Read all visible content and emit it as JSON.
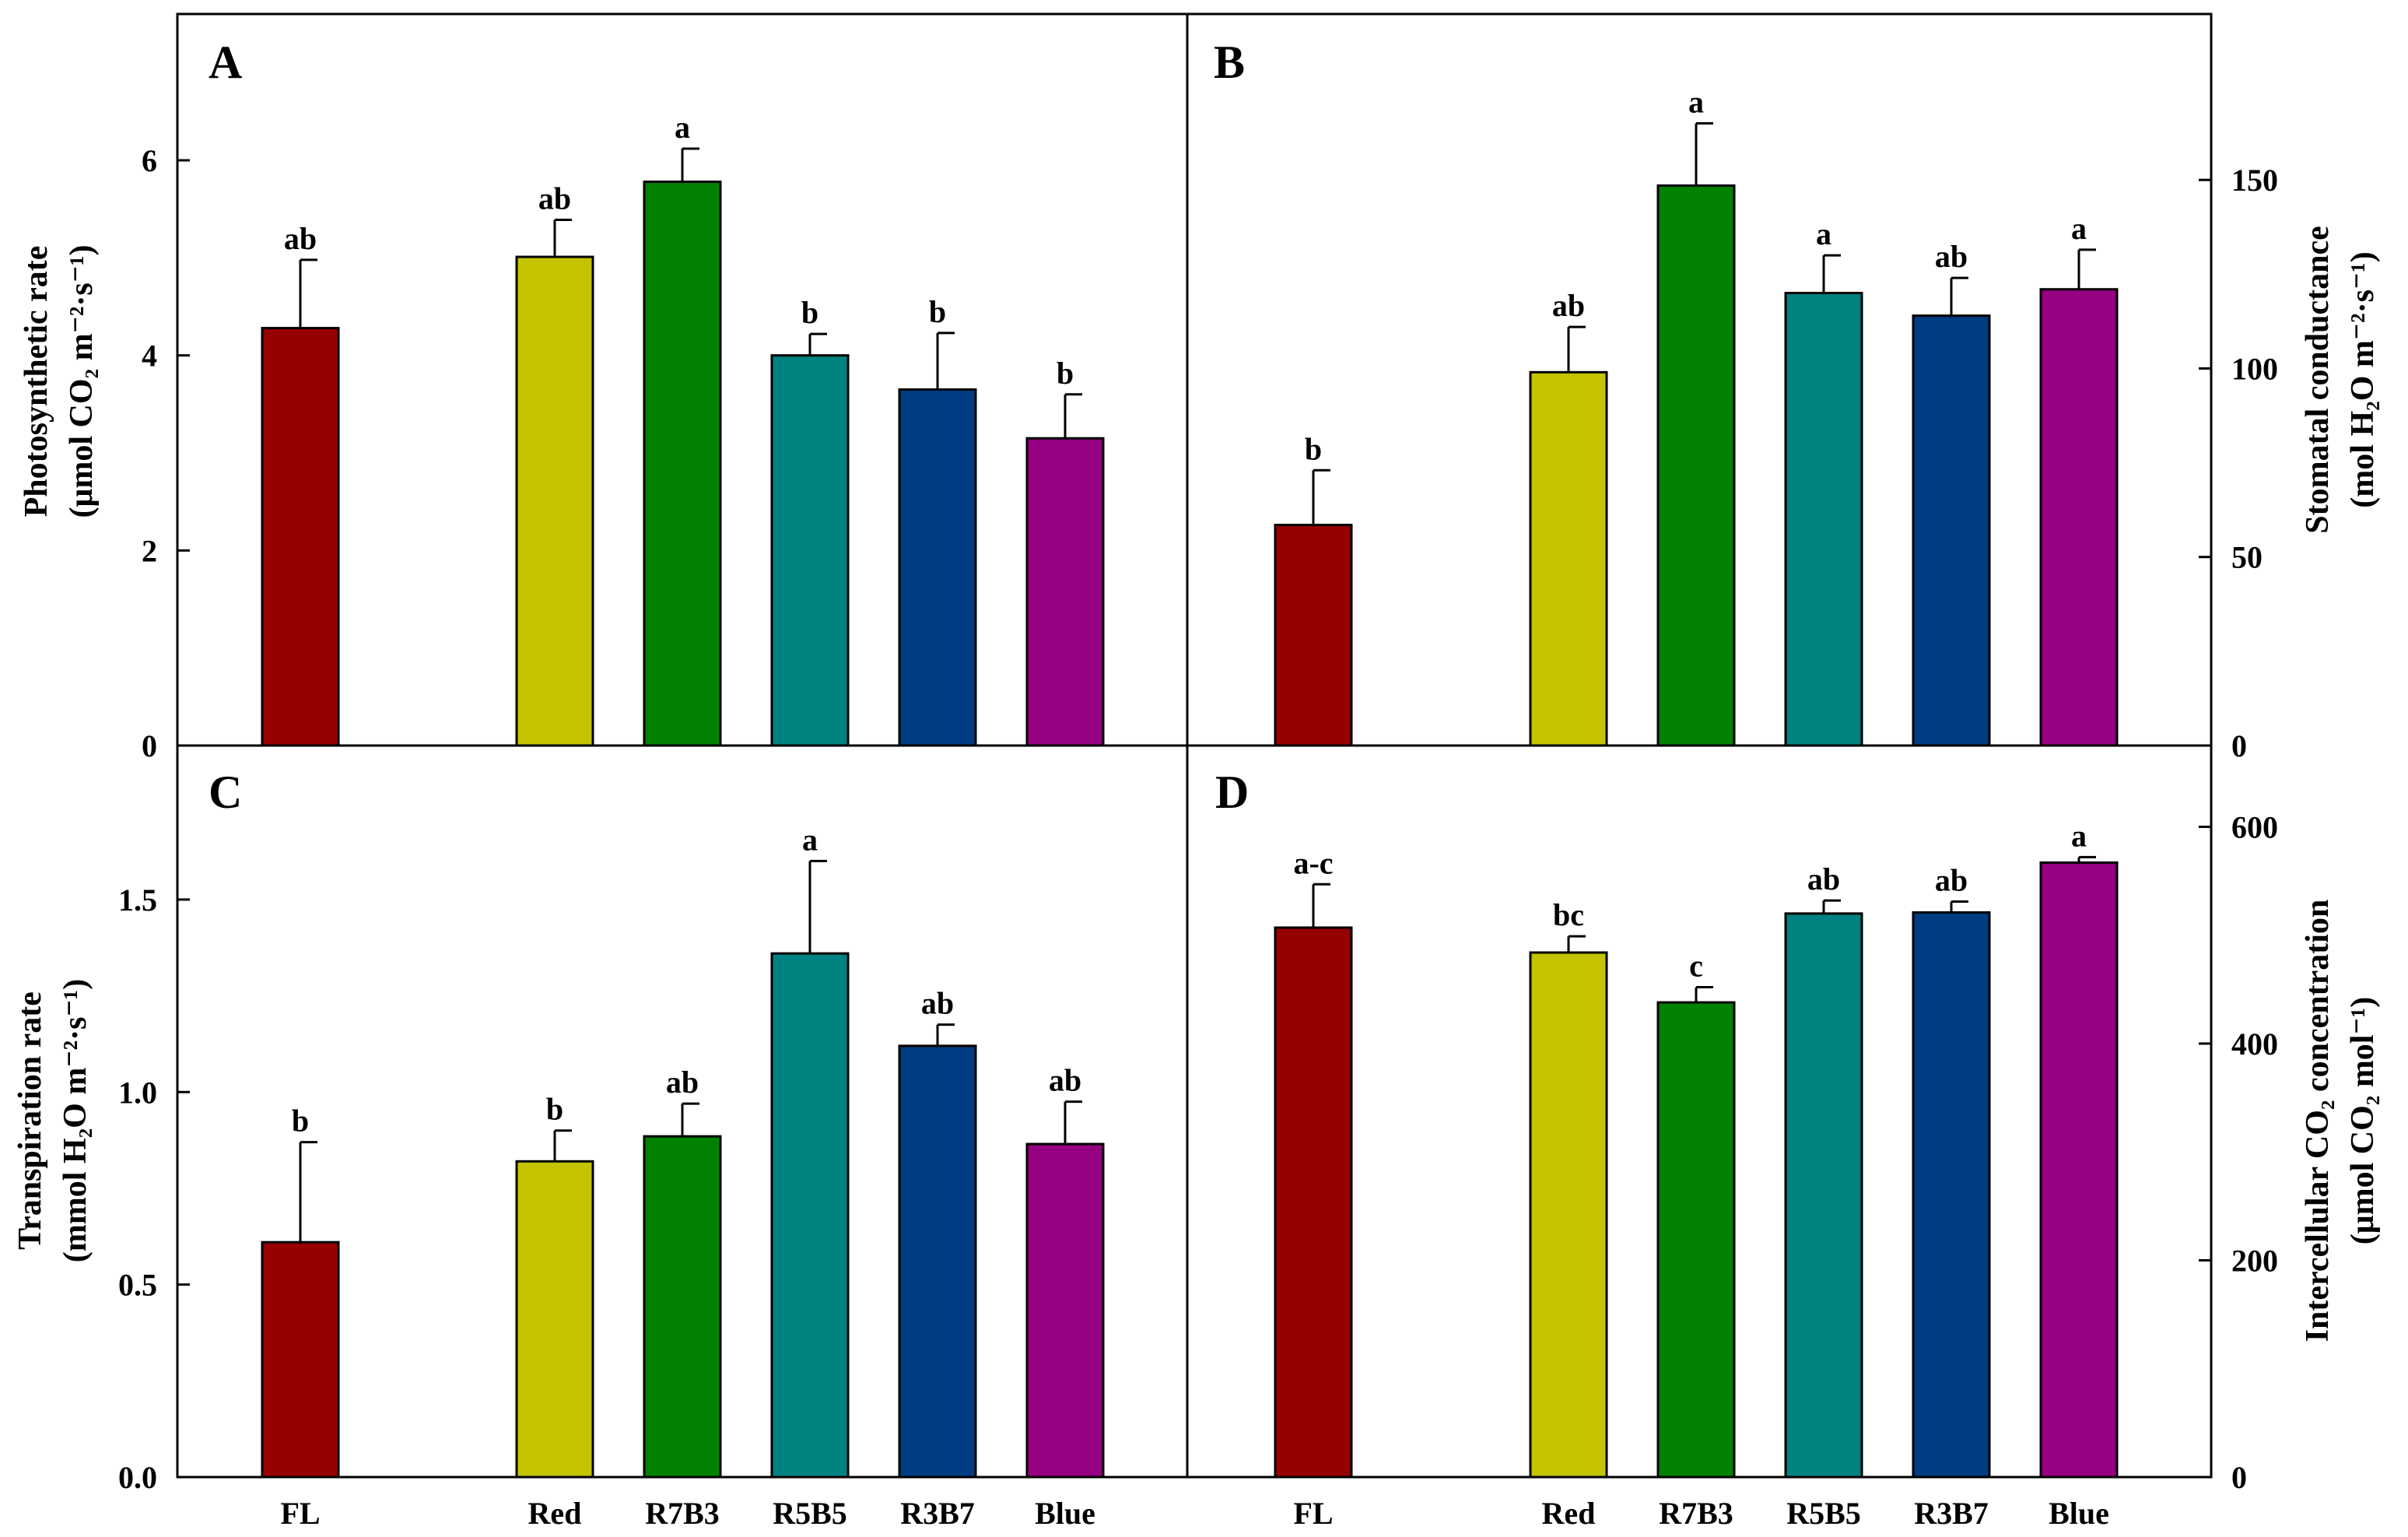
{
  "colors": {
    "FL": "#960000",
    "Red": "#c3c300",
    "R7B3": "#008200",
    "R5B5": "#008282",
    "R3B7": "#003c82",
    "Blue": "#960082"
  },
  "chart_data": [
    {
      "panel": "A",
      "type": "bar",
      "ylabel_line1": "Photosynthetic rate",
      "ylabel_line2": "(μmol CO₂ m⁻²·s⁻¹)",
      "ylim": [
        0,
        7.5
      ],
      "yticks": [
        0,
        2,
        4,
        6
      ],
      "ytick_labels": [
        "0",
        "2",
        "4",
        "6"
      ],
      "categories": [
        "FL",
        "Red",
        "R7B3",
        "R5B5",
        "R3B7",
        "Blue"
      ],
      "values": [
        4.28,
        5.01,
        5.78,
        4.0,
        3.65,
        3.15
      ],
      "errors": [
        0.7,
        0.38,
        0.34,
        0.22,
        0.58,
        0.45
      ],
      "letters": [
        "ab",
        "ab",
        "a",
        "b",
        "b",
        "b"
      ]
    },
    {
      "panel": "B",
      "type": "bar",
      "ylabel_line1": "Stomatal conductance",
      "ylabel_line2": "(mol H₂O m⁻²·s⁻¹)",
      "ylim": [
        0,
        194
      ],
      "yticks": [
        0,
        50,
        100,
        150
      ],
      "ytick_labels": [
        "0",
        "50",
        "100",
        "150"
      ],
      "categories": [
        "FL",
        "Red",
        "R7B3",
        "R5B5",
        "R3B7",
        "Blue"
      ],
      "values": [
        58.5,
        99,
        148.5,
        120,
        114,
        121
      ],
      "errors": [
        14.5,
        12,
        16.5,
        10,
        10,
        10.5
      ],
      "letters": [
        "b",
        "ab",
        "a",
        "a",
        "ab",
        "a"
      ]
    },
    {
      "panel": "C",
      "type": "bar",
      "ylabel_line1": "Transpiration rate",
      "ylabel_line2": "(mmol H₂O m⁻²·s⁻¹)",
      "ylim": [
        0,
        1.9
      ],
      "yticks": [
        0,
        0.5,
        1.0,
        1.5
      ],
      "ytick_labels": [
        "0.0",
        "0.5",
        "1.0",
        "1.5"
      ],
      "categories": [
        "FL",
        "Red",
        "R7B3",
        "R5B5",
        "R3B7",
        "Blue"
      ],
      "values": [
        0.61,
        0.82,
        0.885,
        1.36,
        1.12,
        0.865
      ],
      "errors": [
        0.26,
        0.08,
        0.085,
        0.24,
        0.055,
        0.11
      ],
      "letters": [
        "b",
        "b",
        "ab",
        "a",
        "ab",
        "ab"
      ]
    },
    {
      "panel": "D",
      "type": "bar",
      "ylabel_line1": "Intercellular CO₂ concentration",
      "ylabel_line2": "(μmol CO₂ mol⁻¹)",
      "ylim": [
        0,
        675
      ],
      "yticks": [
        0,
        200,
        400,
        600
      ],
      "ytick_labels": [
        "0",
        "200",
        "400",
        "600"
      ],
      "categories": [
        "FL",
        "Red",
        "R7B3",
        "R5B5",
        "R3B7",
        "Blue"
      ],
      "values": [
        507,
        484,
        438,
        520,
        521,
        567
      ],
      "errors": [
        40,
        15,
        14,
        12,
        10,
        5
      ],
      "letters": [
        "a-c",
        "bc",
        "c",
        "ab",
        "ab",
        "a"
      ]
    }
  ]
}
